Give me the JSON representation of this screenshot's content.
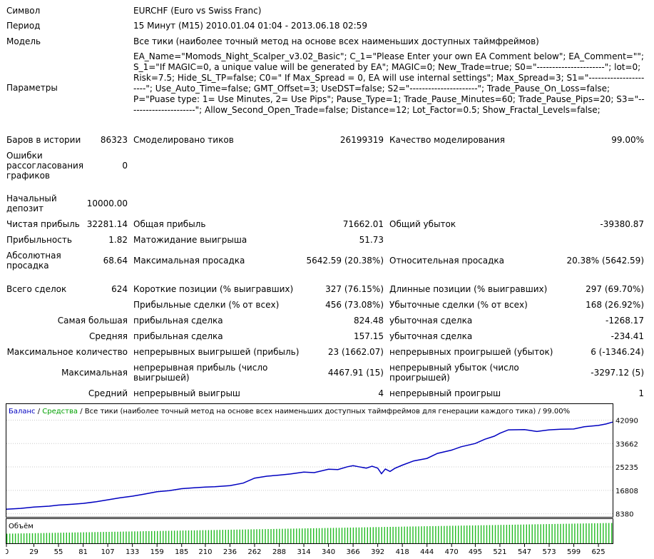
{
  "header": {
    "symbol_label": "Символ",
    "symbol_value": "EURCHF (Euro vs Swiss Franc)",
    "period_label": "Период",
    "period_value": "15 Минут (M15) 2010.01.04 01:04 - 2013.06.18 02:59",
    "model_label": "Модель",
    "model_value": "Все тики (наиболее точный метод на основе всех наименьших доступных таймфреймов)",
    "params_label": "Параметры",
    "params_value": "EA_Name=\"Momods_Night_Scalper_v3.02_Basic\"; C_1=\"Please Enter your own EA Comment below\"; EA_Comment=\"\"; S_1=\"If MAGIC=0, a unique value will be generated by EA\"; MAGIC=0; New_Trade=true; S0=\"----------------------\"; lot=0; Risk=7.5; Hide_SL_TP=false; C0=\" If Max_Spread = 0, EA will use internal settings\"; Max_Spread=3; S1=\"----------------------\"; Use_Auto_Time=false; GMT_Offset=3; UseDST=false; S2=\"----------------------\"; Trade_Pause_On_Loss=false; P=\"Puase type: 1= Use Minutes, 2= Use Pips\"; Pause_Type=1; Trade_Pause_Minutes=60; Trade_Pause_Pips=20; S3=\"----------------------\"; Allow_Second_Open_Trade=false; Distance=12; Lot_Factor=0.5; Show_Fractal_Levels=false;"
  },
  "stats": {
    "bars_label": "Баров в истории",
    "bars_value": "86323",
    "ticks_label": "Смоделировано тиков",
    "ticks_value": "26199319",
    "quality_label": "Качество моделирования",
    "quality_value": "99.00%",
    "errors_label": "Ошибки рассогласования графиков",
    "errors_value": "0",
    "deposit_label": "Начальный депозит",
    "deposit_value": "10000.00",
    "net_label": "Чистая прибыль",
    "net_value": "32281.14",
    "gross_profit_label": "Общая прибыль",
    "gross_profit_value": "71662.01",
    "gross_loss_label": "Общий убыток",
    "gross_loss_value": "-39380.87",
    "pf_label": "Прибыльность",
    "pf_value": "1.82",
    "expect_label": "Матожидание выигрыша",
    "expect_value": "51.73",
    "abs_dd_label": "Абсолютная просадка",
    "abs_dd_value": "68.64",
    "max_dd_label": "Максимальная просадка",
    "max_dd_value": "5642.59 (20.38%)",
    "rel_dd_label": "Относительная просадка",
    "rel_dd_value": "20.38% (5642.59)",
    "total_label": "Всего сделок",
    "total_value": "624",
    "short_label": "Короткие позиции (% выигравших)",
    "short_value": "327 (76.15%)",
    "long_label": "Длинные позиции (% выигравших)",
    "long_value": "297 (69.70%)",
    "profit_trades_label": "Прибыльные сделки (% от всех)",
    "profit_trades_value": "456 (73.08%)",
    "loss_trades_label": "Убыточные сделки (% от всех)",
    "loss_trades_value": "168 (26.92%)",
    "largest_label": "Самая большая",
    "largest_profit_label": "прибыльная сделка",
    "largest_profit_value": "824.48",
    "largest_loss_label": "убыточная сделка",
    "largest_loss_value": "-1268.17",
    "average_label": "Средняя",
    "avg_profit_label": "прибыльная сделка",
    "avg_profit_value": "157.15",
    "avg_loss_label": "убыточная сделка",
    "avg_loss_value": "-234.41",
    "maxcount_label": "Максимальное количество",
    "cons_wins_label": "непрерывных выигрышей (прибыль)",
    "cons_wins_value": "23 (1662.07)",
    "cons_losses_label": "непрерывных проигрышей (убыток)",
    "cons_losses_value": "6 (-1346.24)",
    "maximal_label": "Максимальная",
    "cons_profit_label": "непрерывная прибыль (число выигрышей)",
    "cons_profit_value": "4467.91 (15)",
    "cons_loss_label": "непрерывный убыток (число проигрышей)",
    "cons_loss_value": "-3297.12 (5)",
    "avg_cons_label": "Средний",
    "avg_cons_wins_label": "непрерывный выигрыш",
    "avg_cons_wins_value": "4",
    "avg_cons_losses_label": "непрерывный проигрыш",
    "avg_cons_losses_value": "1"
  },
  "chart_data": {
    "type": "line",
    "legend": {
      "balance": "Баланс",
      "sep1": " / ",
      "equity": "Средства",
      "sep2": " / ",
      "desc": "Все тики (наиболее точный метод на основе всех наименьших доступных таймфреймов для генерации каждого тика)",
      "sep3": " / ",
      "quality": "99.00%"
    },
    "volume_label": "Объём",
    "colors": {
      "balance": "#0000c0",
      "equity": "#00a000",
      "volume": "#22bb22",
      "grid": "#c8c8c8"
    },
    "ylim": [
      7500,
      43000
    ],
    "y_ticks": [
      42090,
      33662,
      25235,
      16808,
      8380
    ],
    "x_ticks": [
      0,
      29,
      55,
      81,
      107,
      133,
      159,
      185,
      210,
      236,
      262,
      288,
      314,
      340,
      366,
      392,
      418,
      444,
      470,
      495,
      521,
      547,
      573,
      599,
      625
    ],
    "xlim": [
      0,
      640
    ],
    "series": [
      {
        "name": "Баланс",
        "x": [
          0,
          15,
          29,
          45,
          55,
          70,
          81,
          95,
          107,
          120,
          133,
          145,
          159,
          172,
          185,
          198,
          210,
          220,
          236,
          250,
          262,
          275,
          288,
          300,
          314,
          325,
          340,
          350,
          360,
          366,
          372,
          380,
          386,
          392,
          396,
          400,
          405,
          410,
          418,
          430,
          444,
          455,
          470,
          480,
          495,
          505,
          515,
          521,
          530,
          547,
          560,
          573,
          585,
          599,
          610,
          625,
          633,
          640
        ],
        "y": [
          10000,
          10300,
          10800,
          11100,
          11500,
          11800,
          12100,
          12700,
          13400,
          14100,
          14700,
          15400,
          16300,
          16700,
          17400,
          17700,
          18000,
          18100,
          18500,
          19400,
          21200,
          21900,
          22300,
          22700,
          23400,
          23200,
          24400,
          24300,
          25300,
          25700,
          25300,
          24800,
          25500,
          24800,
          22800,
          24500,
          23600,
          24700,
          25900,
          27400,
          28300,
          30100,
          31300,
          32500,
          33700,
          35200,
          36300,
          37400,
          38600,
          38700,
          38000,
          38600,
          38800,
          38900,
          39700,
          40200,
          40700,
          41400
        ]
      }
    ],
    "volume": {
      "start_level": 0.45,
      "end_level": 0.95,
      "bars": 640
    }
  }
}
